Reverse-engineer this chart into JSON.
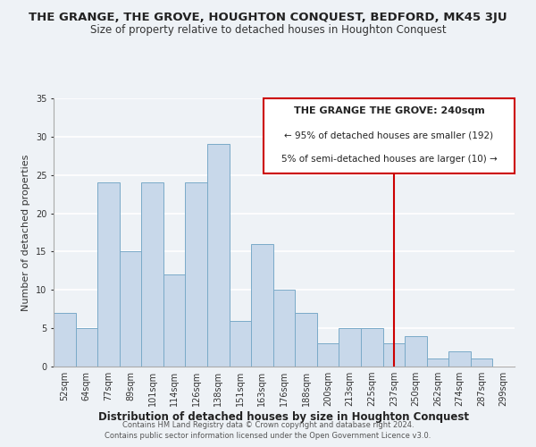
{
  "title": "THE GRANGE, THE GROVE, HOUGHTON CONQUEST, BEDFORD, MK45 3JU",
  "subtitle": "Size of property relative to detached houses in Houghton Conquest",
  "xlabel": "Distribution of detached houses by size in Houghton Conquest",
  "ylabel": "Number of detached properties",
  "bar_labels": [
    "52sqm",
    "64sqm",
    "77sqm",
    "89sqm",
    "101sqm",
    "114sqm",
    "126sqm",
    "138sqm",
    "151sqm",
    "163sqm",
    "176sqm",
    "188sqm",
    "200sqm",
    "213sqm",
    "225sqm",
    "237sqm",
    "250sqm",
    "262sqm",
    "274sqm",
    "287sqm",
    "299sqm"
  ],
  "bar_values": [
    7,
    5,
    24,
    15,
    24,
    12,
    24,
    29,
    6,
    16,
    10,
    7,
    3,
    5,
    5,
    3,
    4,
    1,
    2,
    1,
    0
  ],
  "bar_color": "#c8d8ea",
  "bar_edgecolor": "#7aaac8",
  "vline_x": 15,
  "vline_color": "#cc0000",
  "ylim": [
    0,
    35
  ],
  "yticks": [
    0,
    5,
    10,
    15,
    20,
    25,
    30,
    35
  ],
  "annotation_title": "THE GRANGE THE GROVE: 240sqm",
  "annotation_line1": "← 95% of detached houses are smaller (192)",
  "annotation_line2": "5% of semi-detached houses are larger (10) →",
  "footer1": "Contains HM Land Registry data © Crown copyright and database right 2024.",
  "footer2": "Contains public sector information licensed under the Open Government Licence v3.0.",
  "background_color": "#eef2f6",
  "title_fontsize": 9.5,
  "subtitle_fontsize": 8.5,
  "xlabel_fontsize": 8.5,
  "ylabel_fontsize": 8.0,
  "tick_fontsize": 7.0,
  "annot_title_fontsize": 8.0,
  "annot_text_fontsize": 7.5,
  "footer_fontsize": 6.0
}
